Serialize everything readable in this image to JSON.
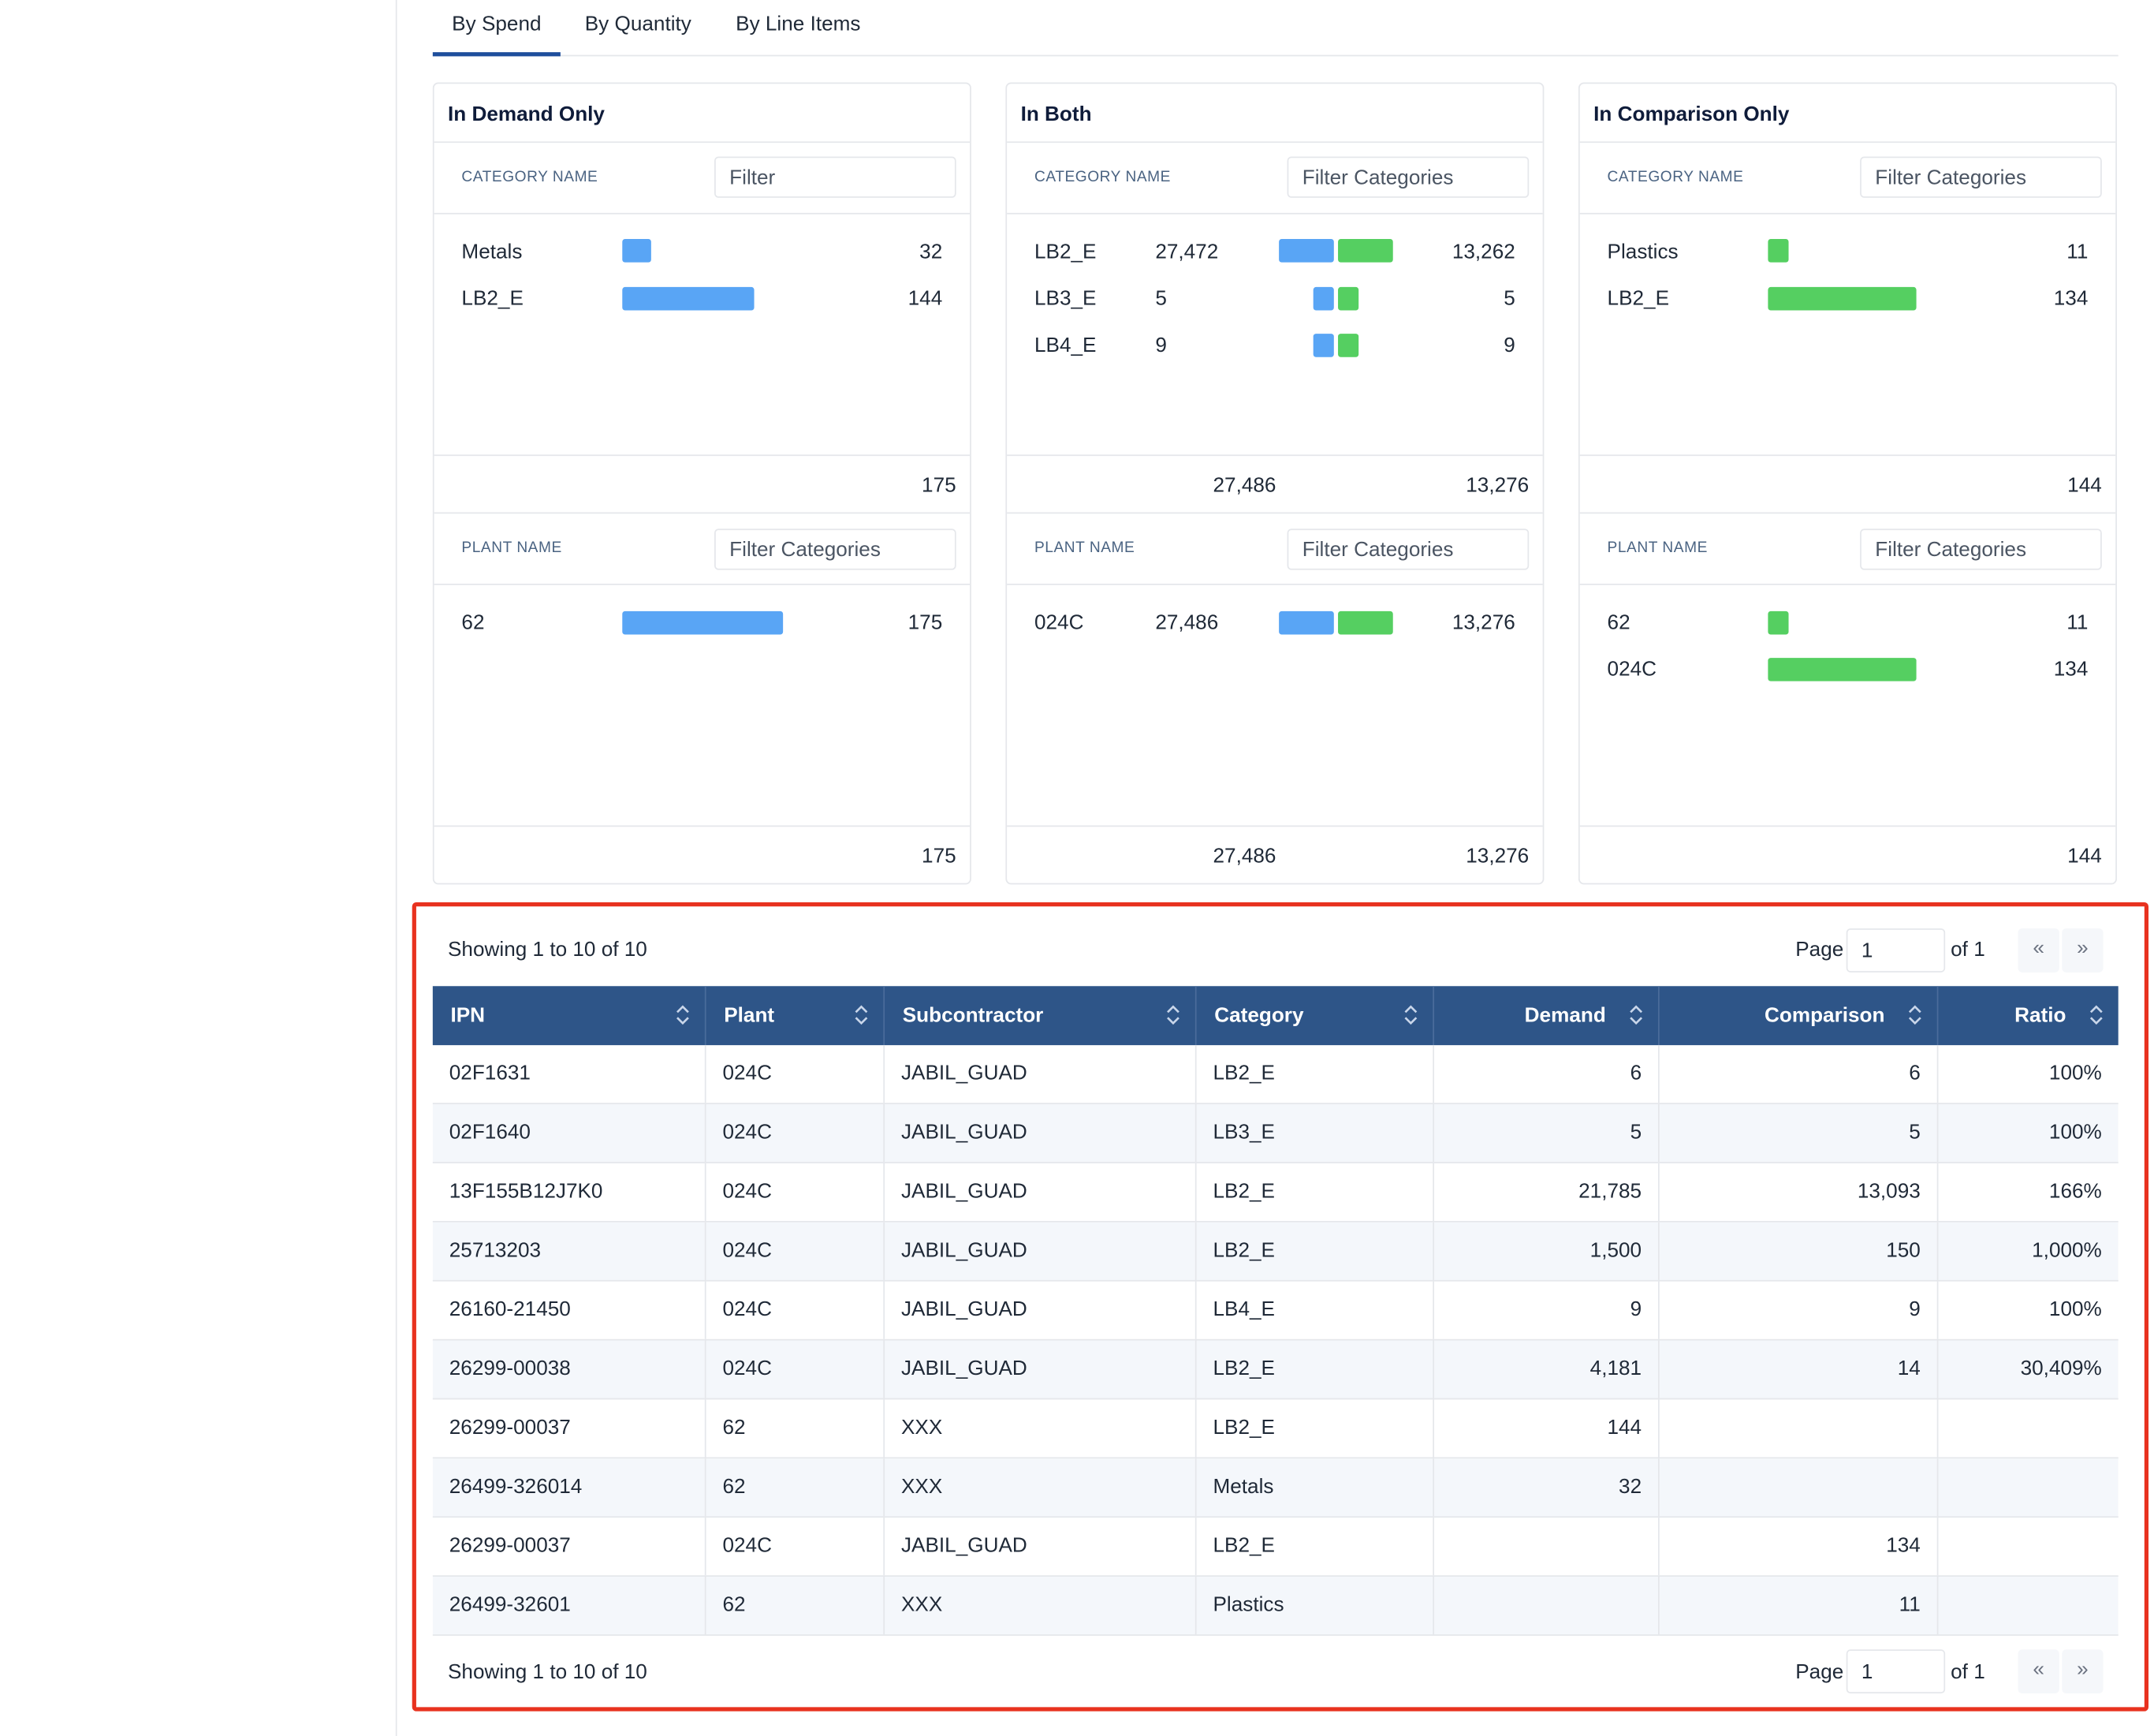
{
  "tabs": [
    {
      "label": "By Spend",
      "active": true
    },
    {
      "label": "By Quantity",
      "active": false
    },
    {
      "label": "By Line Items",
      "active": false
    }
  ],
  "panels": {
    "demand_only": {
      "title": "In Demand Only",
      "category": {
        "label": "CATEGORY NAME",
        "filter_placeholder": "Filter",
        "rows": [
          {
            "name": "Metals",
            "value": "32",
            "value_num": 32
          },
          {
            "name": "LB2_E",
            "value": "144",
            "value_num": 144
          }
        ],
        "total": "175"
      },
      "plant": {
        "label": "PLANT NAME",
        "filter_placeholder": "Filter Categories",
        "rows": [
          {
            "name": "62",
            "value": "175",
            "value_num": 175
          }
        ],
        "total": "175"
      }
    },
    "both": {
      "title": "In Both",
      "category": {
        "label": "CATEGORY NAME",
        "filter_placeholder": "Filter Categories",
        "rows": [
          {
            "name": "LB2_E",
            "demand": "27,472",
            "comparison": "13,262"
          },
          {
            "name": "LB3_E",
            "demand": "5",
            "comparison": "5"
          },
          {
            "name": "LB4_E",
            "demand": "9",
            "comparison": "9"
          }
        ],
        "total_demand": "27,486",
        "total_comparison": "13,276"
      },
      "plant": {
        "label": "PLANT NAME",
        "filter_placeholder": "Filter Categories",
        "rows": [
          {
            "name": "024C",
            "demand": "27,486",
            "comparison": "13,276"
          }
        ],
        "total_demand": "27,486",
        "total_comparison": "13,276"
      }
    },
    "comparison_only": {
      "title": "In Comparison Only",
      "category": {
        "label": "CATEGORY NAME",
        "filter_placeholder": "Filter Categories",
        "rows": [
          {
            "name": "Plastics",
            "value": "11",
            "value_num": 11
          },
          {
            "name": "LB2_E",
            "value": "134",
            "value_num": 134
          }
        ],
        "total": "144"
      },
      "plant": {
        "label": "PLANT NAME",
        "filter_placeholder": "Filter Categories",
        "rows": [
          {
            "name": "62",
            "value": "11",
            "value_num": 11
          },
          {
            "name": "024C",
            "value": "134",
            "value_num": 134
          }
        ],
        "total": "144"
      }
    }
  },
  "table": {
    "showing_text": "Showing 1 to 10 of 10",
    "page_label": "Page",
    "page_value": "1",
    "of_label": "of 1",
    "prev_label": "«",
    "next_label": "»",
    "columns": [
      "IPN",
      "Plant",
      "Subcontractor",
      "Category",
      "Demand",
      "Comparison",
      "Ratio"
    ],
    "rows": [
      [
        "02F1631",
        "024C",
        "JABIL_GUAD",
        "LB2_E",
        "6",
        "6",
        "100%"
      ],
      [
        "02F1640",
        "024C",
        "JABIL_GUAD",
        "LB3_E",
        "5",
        "5",
        "100%"
      ],
      [
        "13F155B12J7K0",
        "024C",
        "JABIL_GUAD",
        "LB2_E",
        "21,785",
        "13,093",
        "166%"
      ],
      [
        "25713203",
        "024C",
        "JABIL_GUAD",
        "LB2_E",
        "1,500",
        "150",
        "1,000%"
      ],
      [
        "26160-21450",
        "024C",
        "JABIL_GUAD",
        "LB4_E",
        "9",
        "9",
        "100%"
      ],
      [
        "26299-00038",
        "024C",
        "JABIL_GUAD",
        "LB2_E",
        "4,181",
        "14",
        "30,409%"
      ],
      [
        "26299-00037",
        "62",
        "XXX",
        "LB2_E",
        "144",
        "",
        ""
      ],
      [
        "26499-326014",
        "62",
        "XXX",
        "Metals",
        "32",
        "",
        ""
      ],
      [
        "26299-00037",
        "024C",
        "JABIL_GUAD",
        "LB2_E",
        "",
        "134",
        ""
      ],
      [
        "26499-32601",
        "62",
        "XXX",
        "Plastics",
        "",
        "11",
        ""
      ]
    ]
  },
  "colors": {
    "demand_bar": "#59a5f5",
    "comparison_bar": "#55cf61",
    "table_header": "#2e5588",
    "tab_active": "#1e4e9c",
    "highlight_box": "#e8321f"
  }
}
